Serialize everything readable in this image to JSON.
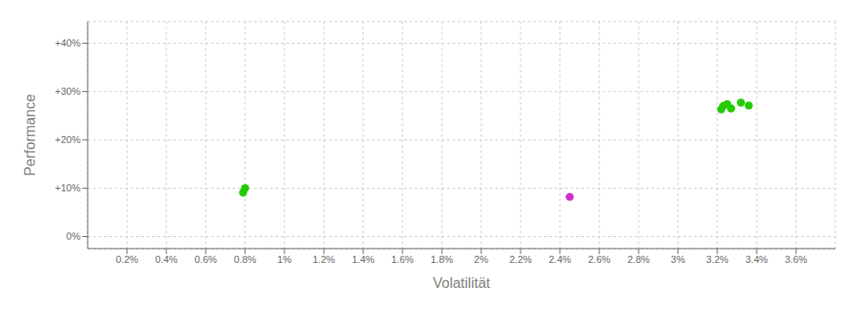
{
  "chart_data": {
    "type": "scatter",
    "x_label": "Volatilität",
    "y_label": "Performance",
    "xlim": [
      0.0,
      0.038
    ],
    "ylim": [
      -0.025,
      0.445
    ],
    "xticks": [
      {
        "value": 0.002,
        "label": "0.2%"
      },
      {
        "value": 0.004,
        "label": "0.4%"
      },
      {
        "value": 0.006,
        "label": "0.6%"
      },
      {
        "value": 0.008,
        "label": "0.8%"
      },
      {
        "value": 0.01,
        "label": "1%"
      },
      {
        "value": 0.012,
        "label": "1.2%"
      },
      {
        "value": 0.014,
        "label": "1.4%"
      },
      {
        "value": 0.016,
        "label": "1.6%"
      },
      {
        "value": 0.018,
        "label": "1.8%"
      },
      {
        "value": 0.02,
        "label": "2%"
      },
      {
        "value": 0.022,
        "label": "2.2%"
      },
      {
        "value": 0.024,
        "label": "2.4%"
      },
      {
        "value": 0.026,
        "label": "2.6%"
      },
      {
        "value": 0.028,
        "label": "2.8%"
      },
      {
        "value": 0.03,
        "label": "3%"
      },
      {
        "value": 0.032,
        "label": "3.2%"
      },
      {
        "value": 0.034,
        "label": "3.4%"
      },
      {
        "value": 0.036,
        "label": "3.6%"
      }
    ],
    "yticks": [
      {
        "value": 0.0,
        "label": "0%"
      },
      {
        "value": 0.1,
        "label": "+10%"
      },
      {
        "value": 0.2,
        "label": "+20%"
      },
      {
        "value": 0.3,
        "label": "+30%"
      },
      {
        "value": 0.4,
        "label": "+40%"
      }
    ],
    "grid": true,
    "series": [
      {
        "color": "#22cc00",
        "x": [
          0.008,
          0.0079,
          0.0322,
          0.0323,
          0.0325,
          0.0327,
          0.0332,
          0.0336
        ],
        "values": [
          0.1,
          0.091,
          0.263,
          0.27,
          0.274,
          0.265,
          0.277,
          0.271
        ]
      },
      {
        "color": "#cc33cc",
        "x": [
          0.0245
        ],
        "values": [
          0.082
        ]
      }
    ]
  }
}
